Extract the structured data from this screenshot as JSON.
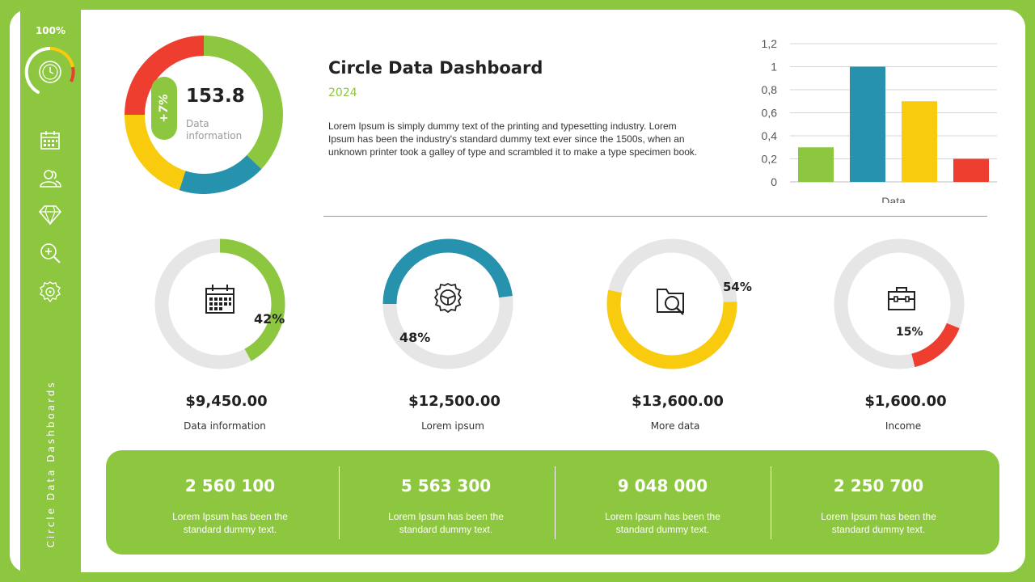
{
  "sidebar": {
    "percent": "100%",
    "vertical_title": "Circle Data Dashboards",
    "icons": [
      "calendar-icon",
      "users-icon",
      "diamond-icon",
      "zoom-icon",
      "settings-icon"
    ]
  },
  "header": {
    "title": "Circle Data Dashboard",
    "year": "2024",
    "description": "Lorem Ipsum is simply dummy text of the printing and typesetting industry. Lorem Ipsum has been the industry's standard dummy text ever since the 1500s, when an unknown printer took a galley of type and scrambled it to make a type specimen book."
  },
  "donut": {
    "value": "153.8",
    "label": "Data information",
    "badge": "+7%"
  },
  "cards": [
    {
      "percent": "42%",
      "amount": "$9,450.00",
      "label": "Data information",
      "icon": "calendar-icon",
      "color": "#8dc63f"
    },
    {
      "percent": "48%",
      "amount": "$12,500.00",
      "label": "Lorem ipsum",
      "icon": "gear-icon",
      "color": "#2692ad"
    },
    {
      "percent": "54%",
      "amount": "$13,600.00",
      "label": "More data",
      "icon": "folder-search-icon",
      "color": "#f8cb0e"
    },
    {
      "percent": "15%",
      "amount": "$1,600.00",
      "label": "Income",
      "icon": "briefcase-icon",
      "color": "#ee3e2f"
    }
  ],
  "stats": [
    {
      "value": "2 560 100",
      "desc": "Lorem Ipsum has been the standard dummy text."
    },
    {
      "value": "5 563 300",
      "desc": "Lorem Ipsum has been the standard dummy text."
    },
    {
      "value": "9 048 000",
      "desc": "Lorem Ipsum has been the standard dummy text."
    },
    {
      "value": "2 250 700",
      "desc": "Lorem Ipsum has been the standard dummy text."
    }
  ],
  "colors": {
    "green": "#8dc63f",
    "blue": "#2692ad",
    "yellow": "#f8cb0e",
    "red": "#ee3e2f",
    "track": "#e6e6e6"
  },
  "chart_data": [
    {
      "type": "bar",
      "categories": [
        "Data"
      ],
      "series": [
        {
          "values": [
            0.3
          ],
          "color": "#8dc63f"
        },
        {
          "values": [
            1.0
          ],
          "color": "#2692ad"
        },
        {
          "values": [
            0.7
          ],
          "color": "#f8cb0e"
        },
        {
          "values": [
            0.2
          ],
          "color": "#ee3e2f"
        }
      ],
      "ylim": [
        0,
        1.2
      ],
      "yticks": [
        "0",
        "0,2",
        "0,4",
        "0,6",
        "0,8",
        "1",
        "1,2"
      ],
      "grid": true
    },
    {
      "type": "pie",
      "donut": true,
      "slices": [
        {
          "value": 37,
          "color": "#8dc63f"
        },
        {
          "value": 18,
          "color": "#2692ad"
        },
        {
          "value": 20,
          "color": "#f8cb0e"
        },
        {
          "value": 25,
          "color": "#ee3e2f"
        }
      ]
    }
  ]
}
